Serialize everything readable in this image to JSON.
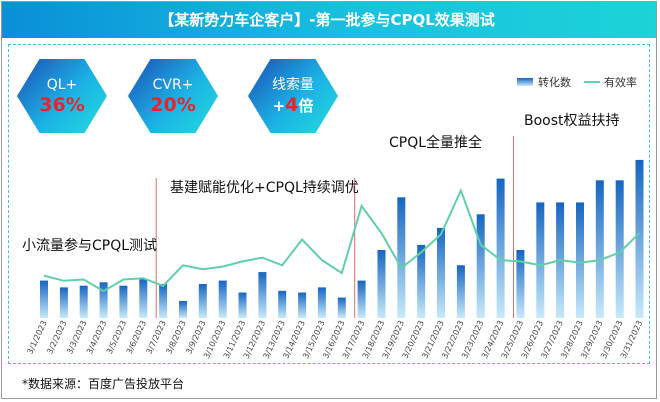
{
  "header": {
    "title": "【某新势力车企客户】-第一批参与CPQL效果测试"
  },
  "kpis": [
    {
      "label": "QL+",
      "value": "36",
      "suffix": "%"
    },
    {
      "label": "CVR+",
      "value": "20",
      "suffix": "%"
    },
    {
      "label": "线索量",
      "prefix": "+",
      "value": "4",
      "suffix": "倍"
    }
  ],
  "footnote": "*数据来源：百度广告投放平台",
  "annotations": [
    "小流量参与CPQL测试",
    "基建赋能优化+CPQL持续调优",
    "CPQL全量推全",
    "Boost权益扶持"
  ],
  "colors": {
    "bar_top": "#1565c0",
    "bar_bottom": "#bfe6fa",
    "line": "#5fd0a8",
    "divider": "#e46b6b",
    "banner": "#0fa9dd"
  },
  "chart_data": {
    "type": "bar",
    "categories": [
      "3/1/2023",
      "3/2/2023",
      "3/3/2023",
      "3/4/2023",
      "3/5/2023",
      "3/6/2023",
      "3/7/2023",
      "3/8/2023",
      "3/9/2023",
      "3/10/2023",
      "3/11/2023",
      "3/12/2023",
      "3/13/2023",
      "3/14/2023",
      "3/15/2023",
      "3/16/2023",
      "3/17/2023",
      "3/18/2023",
      "3/19/2023",
      "3/20/2023",
      "3/21/2023",
      "3/22/2023",
      "3/23/2023",
      "3/24/2023",
      "3/25/2023",
      "3/26/2023",
      "3/27/2023",
      "3/28/2023",
      "3/29/2023",
      "3/30/2023",
      "3/31/2023"
    ],
    "series": [
      {
        "name": "转化数",
        "type": "bar",
        "values": [
          22,
          18,
          19,
          21,
          19,
          23,
          20,
          10,
          20,
          22,
          15,
          27,
          16,
          15,
          18,
          12,
          22,
          40,
          71,
          43,
          53,
          31,
          61,
          82,
          40,
          68,
          68,
          68,
          81,
          81,
          93
        ]
      },
      {
        "name": "有效率",
        "type": "line",
        "values": [
          22,
          18,
          19,
          10,
          19,
          20,
          14,
          30,
          27,
          29,
          33,
          36,
          30,
          50,
          34,
          24,
          76,
          55,
          28,
          40,
          54,
          88,
          46,
          34,
          33,
          30,
          34,
          32,
          34,
          40,
          55
        ]
      }
    ],
    "dividers_after": [
      "3/6/2023",
      "3/16/2023",
      "3/24/2023"
    ],
    "legend": "top-right",
    "grid": false
  }
}
